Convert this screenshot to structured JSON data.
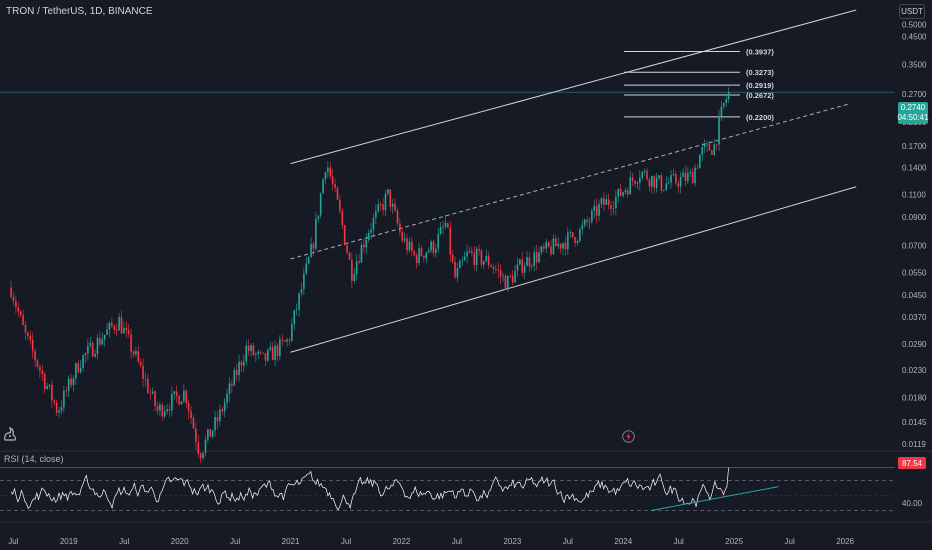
{
  "header": {
    "symbol": "TRON / TetherUS, 1D, BINANCE",
    "currency": "USDT"
  },
  "price_badge": {
    "price": "0.2740",
    "countdown": "04:50:41"
  },
  "rsi_panel": {
    "title": "RSI (14, close)",
    "value": "87.54"
  },
  "colors": {
    "background": "#161a25",
    "bullish": "#26a69a",
    "bearish": "#f23645",
    "channel_line": "#d1d4dc",
    "trend_line": "#26a69a",
    "rsi_line": "#ffffff"
  },
  "icons": {
    "logo": "tradingview-logo-icon",
    "alert": "flash-icon"
  },
  "chart_data": {
    "type": "candlestick",
    "scale": "log",
    "price_axis": {
      "ticks": [
        "0.5000",
        "0.4500",
        "0.3500",
        "0.2700",
        "0.2100",
        "0.1700",
        "0.1400",
        "0.1100",
        "0.0900",
        "0.0700",
        "0.0550",
        "0.0450",
        "0.0370",
        "0.0290",
        "0.0230",
        "0.0180",
        "0.0145",
        "0.0119"
      ],
      "range": [
        0.0115,
        0.55
      ]
    },
    "time_axis": {
      "ticks": [
        "Jul",
        "2019",
        "Jul",
        "2020",
        "Jul",
        "2021",
        "Jul",
        "2022",
        "Jul",
        "2023",
        "Jul",
        "2024",
        "Jul",
        "2025",
        "Jul",
        "2026"
      ]
    },
    "key_levels": [
      "0.3937",
      "0.3273",
      "0.2919",
      "0.2672",
      "0.2200"
    ],
    "channel": {
      "upper": [
        {
          "t": 2021.0,
          "v": 0.145
        },
        {
          "t": 2026.1,
          "v": 0.57
        }
      ],
      "middle": [
        {
          "t": 2021.0,
          "v": 0.062
        },
        {
          "t": 2024.95,
          "v": 0.21
        }
      ],
      "lower": [
        {
          "t": 2021.0,
          "v": 0.027
        },
        {
          "t": 2026.1,
          "v": 0.118
        }
      ]
    },
    "price_anchors": [
      {
        "t": 2018.48,
        "v": 0.048
      },
      {
        "t": 2018.6,
        "v": 0.032
      },
      {
        "t": 2018.9,
        "v": 0.016
      },
      {
        "t": 2019.1,
        "v": 0.025
      },
      {
        "t": 2019.45,
        "v": 0.036
      },
      {
        "t": 2019.6,
        "v": 0.026
      },
      {
        "t": 2019.8,
        "v": 0.016
      },
      {
        "t": 2020.05,
        "v": 0.019
      },
      {
        "t": 2020.18,
        "v": 0.011
      },
      {
        "t": 2020.35,
        "v": 0.015
      },
      {
        "t": 2020.6,
        "v": 0.028
      },
      {
        "t": 2020.75,
        "v": 0.025
      },
      {
        "t": 2020.98,
        "v": 0.03
      },
      {
        "t": 2021.2,
        "v": 0.07
      },
      {
        "t": 2021.32,
        "v": 0.15
      },
      {
        "t": 2021.45,
        "v": 0.09
      },
      {
        "t": 2021.55,
        "v": 0.055
      },
      {
        "t": 2021.7,
        "v": 0.08
      },
      {
        "t": 2021.88,
        "v": 0.11
      },
      {
        "t": 2022.0,
        "v": 0.075
      },
      {
        "t": 2022.12,
        "v": 0.063
      },
      {
        "t": 2022.3,
        "v": 0.07
      },
      {
        "t": 2022.4,
        "v": 0.085
      },
      {
        "t": 2022.48,
        "v": 0.052
      },
      {
        "t": 2022.6,
        "v": 0.065
      },
      {
        "t": 2022.8,
        "v": 0.06
      },
      {
        "t": 2022.95,
        "v": 0.05
      },
      {
        "t": 2023.1,
        "v": 0.06
      },
      {
        "t": 2023.4,
        "v": 0.07
      },
      {
        "t": 2023.6,
        "v": 0.078
      },
      {
        "t": 2023.8,
        "v": 0.1
      },
      {
        "t": 2023.95,
        "v": 0.108
      },
      {
        "t": 2024.15,
        "v": 0.135
      },
      {
        "t": 2024.35,
        "v": 0.12
      },
      {
        "t": 2024.5,
        "v": 0.125
      },
      {
        "t": 2024.62,
        "v": 0.13
      },
      {
        "t": 2024.7,
        "v": 0.16
      },
      {
        "t": 2024.82,
        "v": 0.17
      },
      {
        "t": 2024.9,
        "v": 0.24
      },
      {
        "t": 2024.95,
        "v": 0.274
      }
    ],
    "rsi": {
      "ticks": [
        "40.00"
      ],
      "levels": [
        70,
        50,
        30
      ],
      "current": 87.54,
      "trendline": [
        {
          "t": 2024.25,
          "v": 30
        },
        {
          "t": 2025.4,
          "v": 62
        }
      ]
    }
  }
}
